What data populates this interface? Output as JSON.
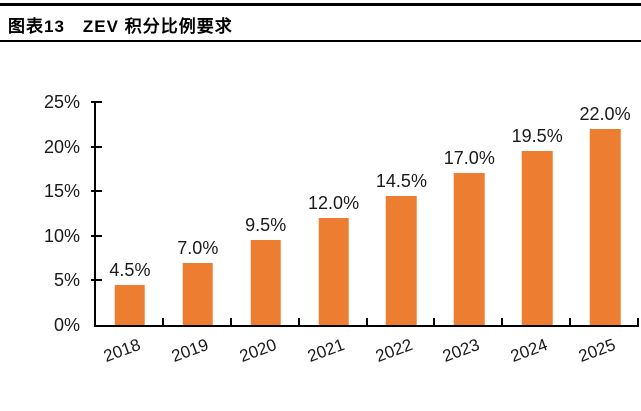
{
  "header": {
    "title": "图表13　ZEV 积分比例要求"
  },
  "chart_data": {
    "type": "bar",
    "title": "ZEV 积分比例要求",
    "figure_label": "图表13",
    "categories": [
      "2018",
      "2019",
      "2020",
      "2021",
      "2022",
      "2023",
      "2024",
      "2025"
    ],
    "values": [
      4.5,
      7.0,
      9.5,
      12.0,
      14.5,
      17.0,
      19.5,
      22.0
    ],
    "value_labels": [
      "4.5%",
      "7.0%",
      "9.5%",
      "12.0%",
      "14.5%",
      "17.0%",
      "19.5%",
      "22.0%"
    ],
    "xlabel": "",
    "ylabel": "",
    "ylim": [
      0,
      25
    ],
    "y_tick_step": 5,
    "y_tick_labels": [
      "0%",
      "5%",
      "10%",
      "15%",
      "20%",
      "25%"
    ],
    "grid": "off",
    "legend": "none",
    "bar_color": "#ED7D31",
    "axis_color": "#000000",
    "text_color": "#1a1a1a"
  }
}
